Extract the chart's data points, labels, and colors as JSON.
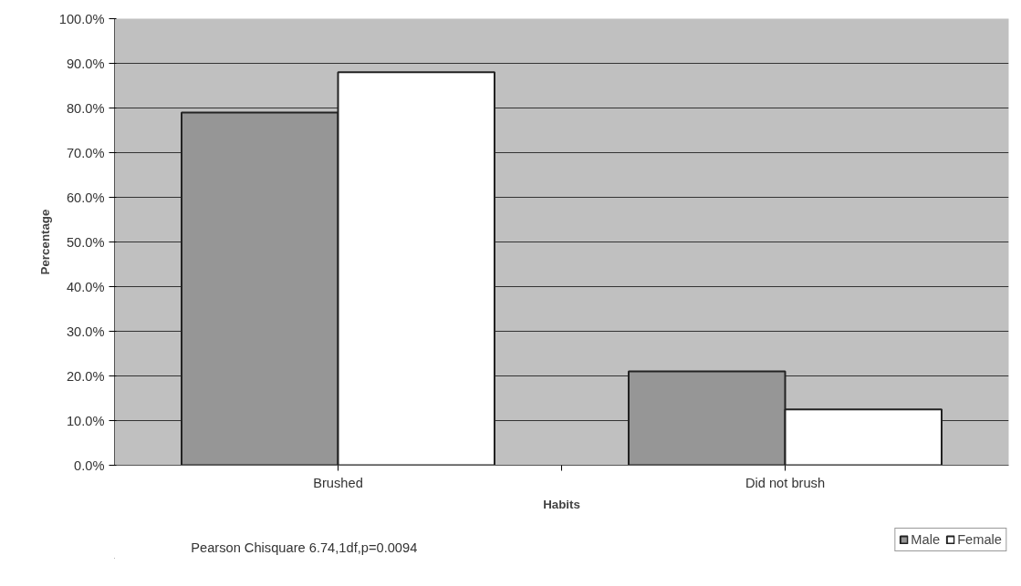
{
  "chart_data": {
    "type": "bar",
    "xlabel": "Habits",
    "ylabel": "Percentage",
    "categories": [
      "Brushed",
      "Did not brush"
    ],
    "series": [
      {
        "name": "Male",
        "color": "#969696",
        "values": [
          79,
          21
        ]
      },
      {
        "name": "Female",
        "color": "#ffffff",
        "values": [
          88,
          12.5
        ]
      }
    ],
    "ylim": [
      0,
      100
    ],
    "yticks": [
      {
        "value": 0,
        "label": "0.0%"
      },
      {
        "value": 10,
        "label": "10.0%"
      },
      {
        "value": 20,
        "label": "20.0%"
      },
      {
        "value": 30,
        "label": "30.0%"
      },
      {
        "value": 40,
        "label": "40.0%"
      },
      {
        "value": 50,
        "label": "50.0%"
      },
      {
        "value": 60,
        "label": "60.0%"
      },
      {
        "value": 70,
        "label": "70.0%"
      },
      {
        "value": 80,
        "label": "80.0%"
      },
      {
        "value": 90,
        "label": "90.0%"
      },
      {
        "value": 100,
        "label": "100.0%"
      }
    ],
    "grid": "y",
    "legend": "bottom right",
    "annotations": [
      "Pearson Chisquare 6.74,1df,p=0.0094"
    ]
  }
}
